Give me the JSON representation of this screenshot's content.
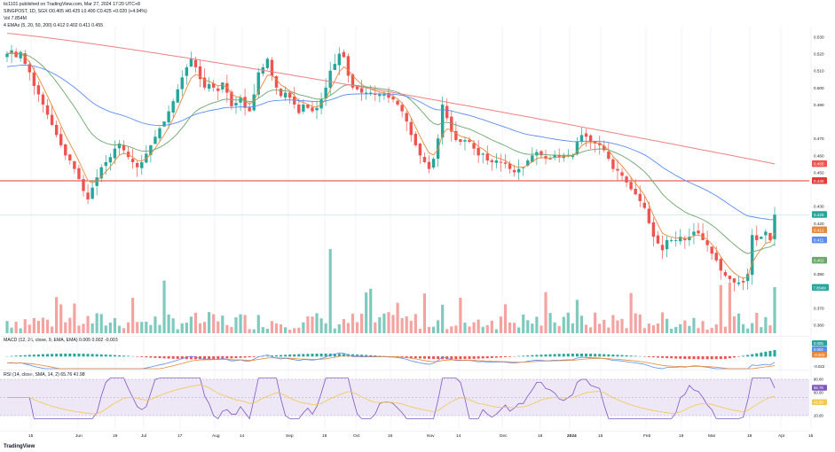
{
  "header": {
    "published": "tic1101 published on TradingView.com, Mar 27, 2024 17:20 UTC+8",
    "symbol_line": "SINGPOST, 1D, SGX  O0.405  H0.425  L0.400  C0.425  +0.020 (+4.94%)",
    "vol_line": "Vol  7.854M",
    "ema_line": "4 EMAs (5, 20, 50, 200)  0.412  0.402  0.411  0.455",
    "macd_line": "MACD (12, 26, close, 9, EMA, EMA)  0.005  0.002  -0.003",
    "rsi_line": "RSI (14, close, SMA, 14, 2)  65.76  41.98"
  },
  "brand": "TradingView",
  "colors": {
    "up": "#26a69a",
    "down": "#ef5350",
    "volUp": "#7fc9bf",
    "volDown": "#f5a3a1",
    "ema5": "#e8883a",
    "ema20": "#6ba86b",
    "ema50": "#5b8def",
    "ema200": "#f08080",
    "hline": "#e53935",
    "rsiLine": "#7e57c2",
    "rsiMa": "#f2c94c",
    "rsiBand": "#ede7f6",
    "macdLine": "#5b8def",
    "signalLine": "#e8883a",
    "grid": "#f0f3fa",
    "axisText": "#131722"
  },
  "chart_data": {
    "type": "candlestick",
    "symbol": "SINGPOST",
    "timeframe": "1D",
    "price_axis": {
      "range": [
        0.354,
        0.536
      ],
      "ticks": [
        "0.530",
        "0.520",
        "0.510",
        "0.500",
        "0.490",
        "0.470",
        "0.460",
        "0.450",
        "0.430",
        "0.420",
        "0.390",
        "0.370",
        "0.360"
      ]
    },
    "horizontal_line": 0.445,
    "current_level_line": 0.425,
    "last_values": {
      "ema200": "0.455",
      "hline": "0.445",
      "close": "0.425",
      "ema5": "0.412",
      "ema50": "0.411",
      "ema20": "0.402",
      "volume": "7.854M"
    },
    "time_axis": [
      "15",
      "Jun",
      "19",
      "Jul",
      "17",
      "Aug",
      "14",
      "Sep",
      "18",
      "Oct",
      "16",
      "Nov",
      "14",
      "Dec",
      "18",
      "2024",
      "15",
      "Feb",
      "19",
      "Mar",
      "18",
      "Apr",
      "15"
    ],
    "series_closes": [
      0.52,
      0.522,
      0.518,
      0.521,
      0.514,
      0.509,
      0.501,
      0.496,
      0.49,
      0.484,
      0.478,
      0.472,
      0.466,
      0.46,
      0.457,
      0.452,
      0.446,
      0.439,
      0.434,
      0.441,
      0.447,
      0.453,
      0.456,
      0.459,
      0.464,
      0.467,
      0.463,
      0.459,
      0.456,
      0.453,
      0.456,
      0.461,
      0.466,
      0.471,
      0.476,
      0.48,
      0.486,
      0.492,
      0.499,
      0.506,
      0.512,
      0.517,
      0.512,
      0.505,
      0.5,
      0.502,
      0.5,
      0.498,
      0.503,
      0.497,
      0.489,
      0.491,
      0.494,
      0.488,
      0.486,
      0.496,
      0.509,
      0.512,
      0.517,
      0.507,
      0.5,
      0.495,
      0.497,
      0.494,
      0.49,
      0.485,
      0.49,
      0.488,
      0.486,
      0.488,
      0.493,
      0.5,
      0.51,
      0.514,
      0.52,
      0.518,
      0.507,
      0.5,
      0.499,
      0.497,
      0.497,
      0.497,
      0.496,
      0.496,
      0.496,
      0.494,
      0.493,
      0.49,
      0.486,
      0.48,
      0.472,
      0.466,
      0.46,
      0.456,
      0.452,
      0.458,
      0.47,
      0.49,
      0.482,
      0.474,
      0.469,
      0.468,
      0.469,
      0.468,
      0.464,
      0.46,
      0.461,
      0.457,
      0.456,
      0.457,
      0.456,
      0.455,
      0.452,
      0.45,
      0.452,
      0.453,
      0.457,
      0.46,
      0.462,
      0.46,
      0.458,
      0.458,
      0.46,
      0.459,
      0.46,
      0.46,
      0.46,
      0.468,
      0.472,
      0.471,
      0.468,
      0.467,
      0.466,
      0.463,
      0.458,
      0.452,
      0.451,
      0.448,
      0.444,
      0.44,
      0.437,
      0.433,
      0.429,
      0.42,
      0.412,
      0.408,
      0.404,
      0.41,
      0.41,
      0.41,
      0.412,
      0.41,
      0.412,
      0.415,
      0.414,
      0.41,
      0.407,
      0.402,
      0.398,
      0.392,
      0.389,
      0.387,
      0.385,
      0.385,
      0.385,
      0.39,
      0.413,
      0.41,
      0.412,
      0.415,
      0.41,
      0.425
    ],
    "volume": {
      "unit": "relative",
      "last": "7.854M"
    },
    "macd": {
      "params": "12, 26, close, 9, EMA, EMA",
      "values": [
        "0.005",
        "0.002",
        "-0.003"
      ],
      "axis_ticks": [
        "0.005",
        "0.002",
        "-0.003",
        "-0.022"
      ]
    },
    "rsi": {
      "params": "14, close, SMA, 14, 2",
      "values": [
        "65.76",
        "41.98"
      ],
      "axis_ticks": [
        "80.00",
        "65.76",
        "60.00",
        "41.98",
        "20.00"
      ]
    }
  }
}
